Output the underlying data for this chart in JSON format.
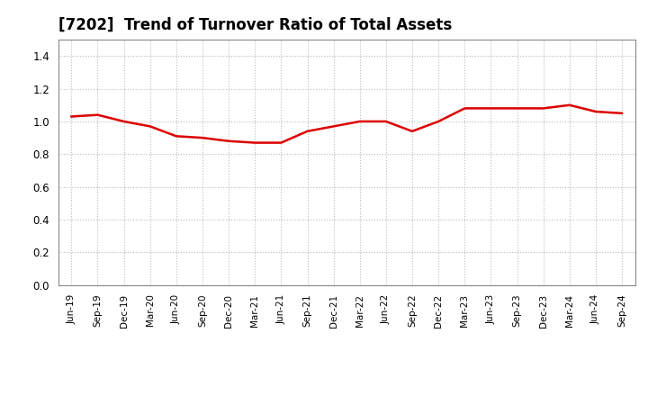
{
  "title": "[7202]  Trend of Turnover Ratio of Total Assets",
  "labels": [
    "Jun-19",
    "Sep-19",
    "Dec-19",
    "Mar-20",
    "Jun-20",
    "Sep-20",
    "Dec-20",
    "Mar-21",
    "Jun-21",
    "Sep-21",
    "Dec-21",
    "Mar-22",
    "Jun-22",
    "Sep-22",
    "Dec-22",
    "Mar-23",
    "Jun-23",
    "Sep-23",
    "Dec-23",
    "Mar-24",
    "Jun-24",
    "Sep-24"
  ],
  "values": [
    1.03,
    1.04,
    1.0,
    0.97,
    0.91,
    0.9,
    0.88,
    0.87,
    0.87,
    0.94,
    0.97,
    1.0,
    1.0,
    0.94,
    1.0,
    1.08,
    1.08,
    1.08,
    1.08,
    1.1,
    1.06,
    1.05
  ],
  "line_color": "#dd0000",
  "background_color": "#ffffff",
  "plot_bg_color": "#ffffff",
  "ylim": [
    0.0,
    1.5
  ],
  "yticks": [
    0.0,
    0.2,
    0.4,
    0.6,
    0.8,
    1.0,
    1.2,
    1.4
  ],
  "title_fontsize": 12,
  "grid_color": "#bbbbbb",
  "line_width": 1.8
}
